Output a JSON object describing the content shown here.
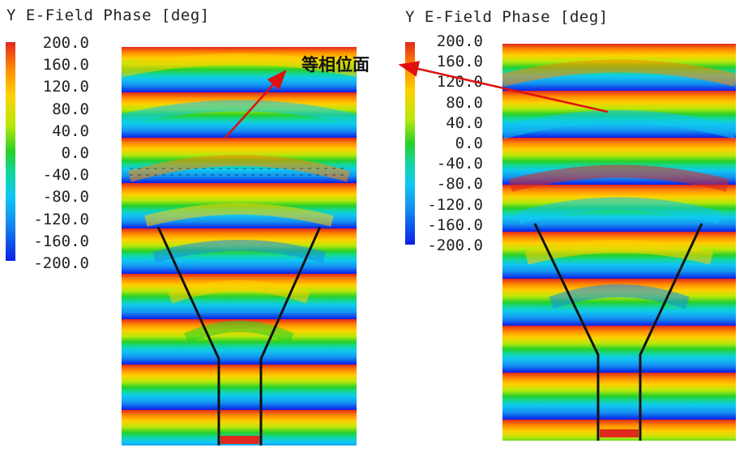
{
  "left_plot": {
    "title": "Y E-Field Phase [deg]",
    "legend_ticks": [
      "200.0",
      "160.0",
      "120.0",
      "80.0",
      "40.0",
      "0.0",
      "-40.0",
      "-80.0",
      "-120.0",
      "-160.0",
      "-200.0"
    ]
  },
  "right_plot": {
    "title": "Y E-Field Phase [deg]",
    "legend_ticks": [
      "200.0",
      "160.0",
      "120.0",
      "80.0",
      "40.0",
      "0.0",
      "-40.0",
      "-80.0",
      "-120.0",
      "-160.0",
      "-200.0"
    ]
  },
  "annotation": {
    "label": "等相位面",
    "arrow_color": "#e01010"
  },
  "colors": {
    "colormap": [
      "#e0281e",
      "#ff8a00",
      "#ffd000",
      "#b9e80a",
      "#28d028",
      "#12d6a0",
      "#10c8f0",
      "#1490f0",
      "#0a1ee8"
    ],
    "outline": "#111111"
  }
}
